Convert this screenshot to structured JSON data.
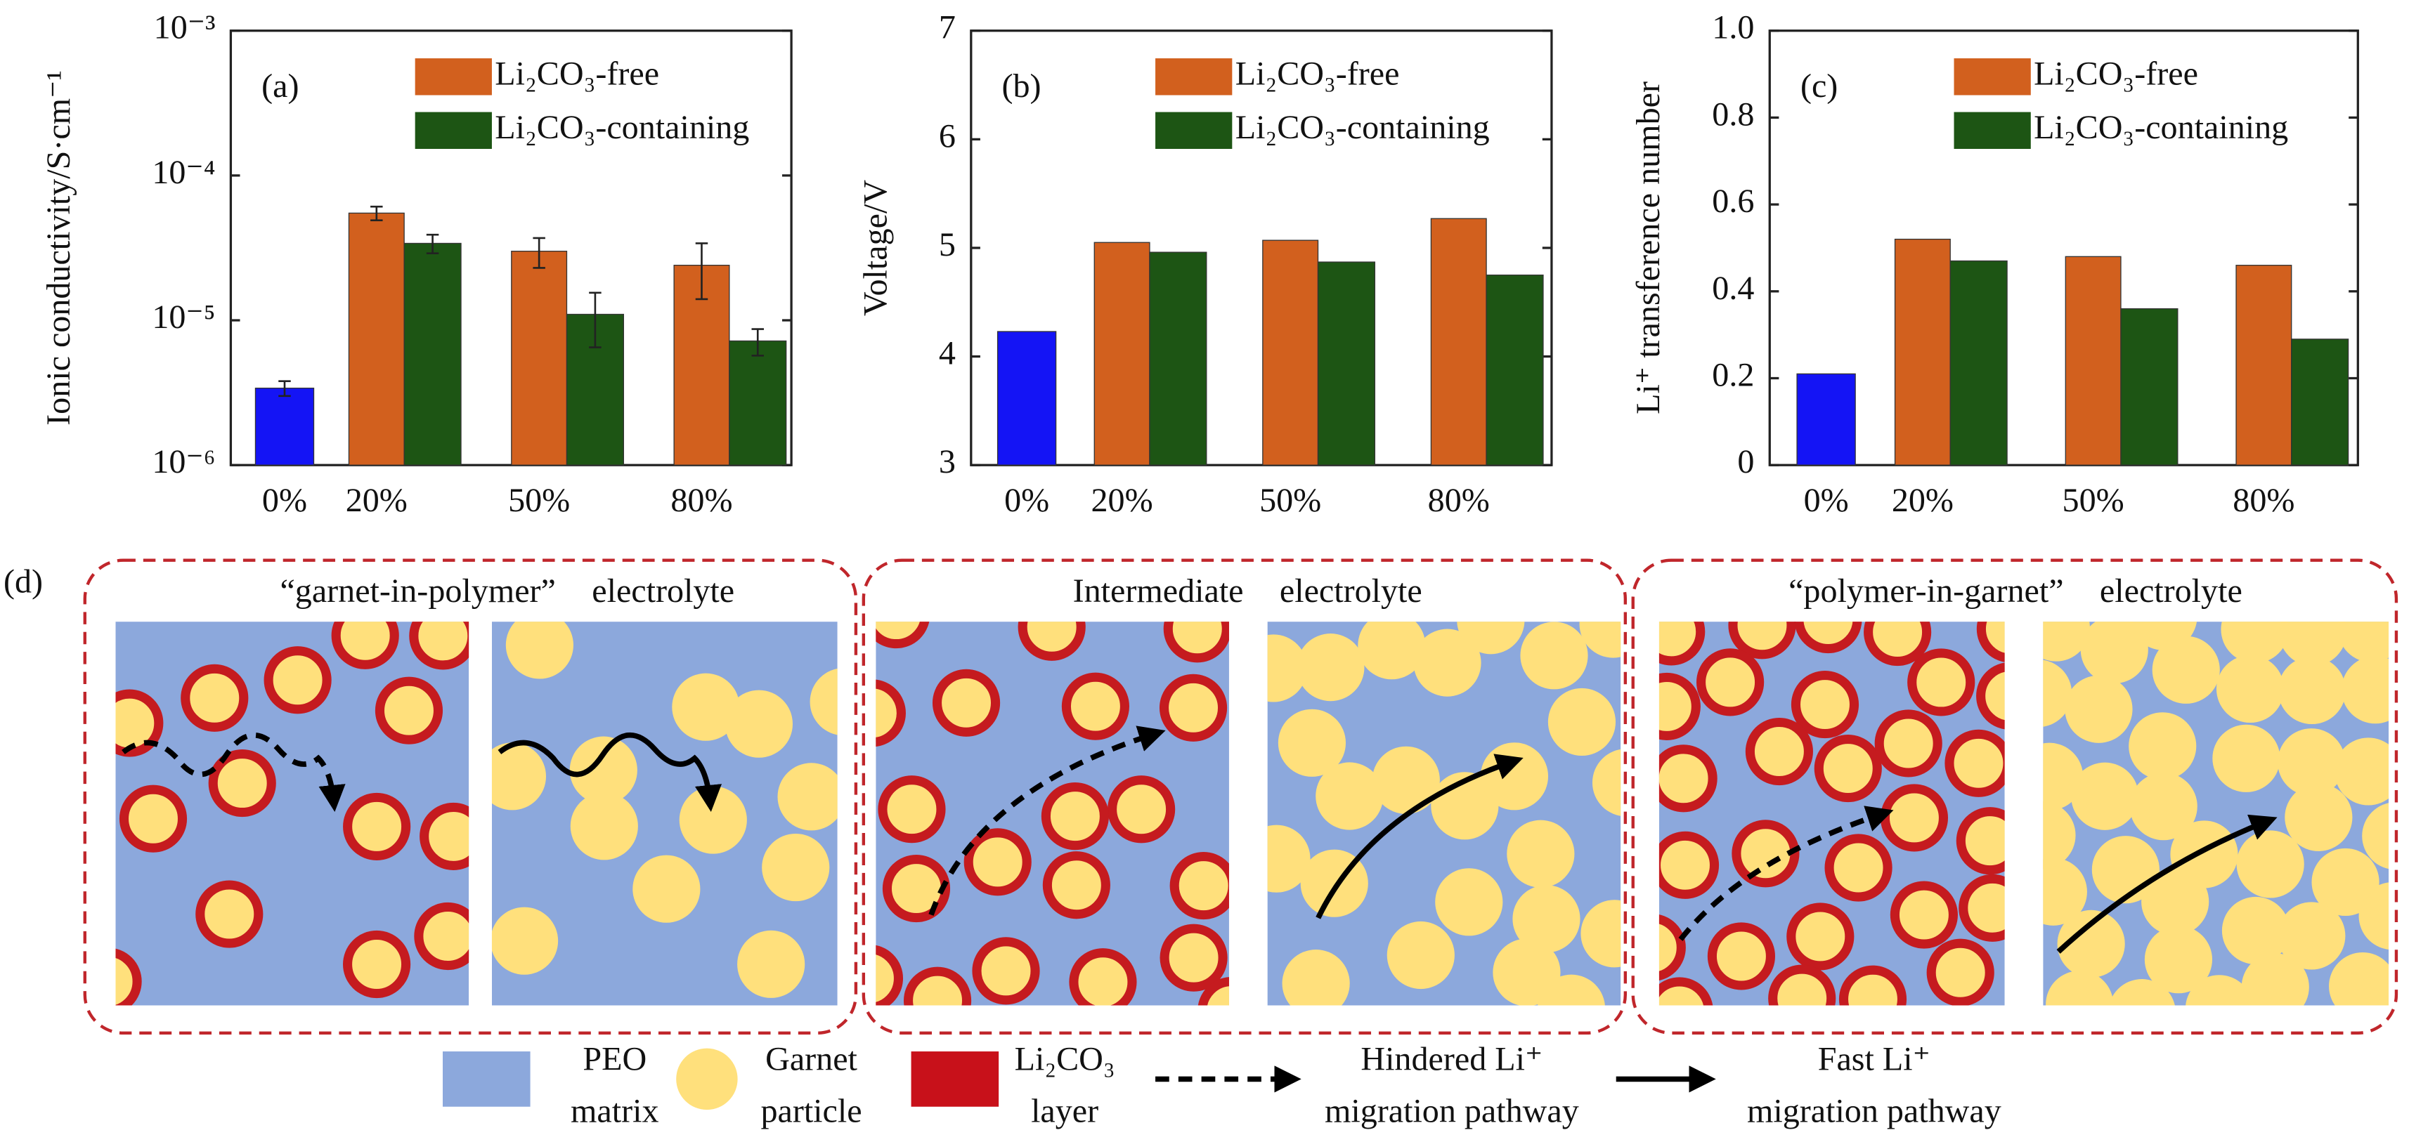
{
  "chart_data": [
    {
      "type": "bar",
      "label": "(a)",
      "ylabel": "Ionic conductivity/S·cm⁻¹",
      "log_scale": true,
      "categories": [
        "0%",
        "20%",
        "50%",
        "80%"
      ],
      "ylim": [
        1e-06,
        0.001
      ],
      "yticks": [
        {
          "value": 1e-06,
          "label": "10⁻⁶"
        },
        {
          "value": 1e-05,
          "label": "10⁻⁵"
        },
        {
          "value": 0.0001,
          "label": "10⁻⁴"
        },
        {
          "value": 0.001,
          "label": "10⁻³"
        }
      ],
      "series": [
        {
          "color": "#1414f5",
          "values": [
            3.4e-06,
            null,
            null,
            null
          ],
          "errors": [
            4e-07,
            null,
            null,
            null
          ]
        },
        {
          "name": "Li₂CO₃-free",
          "color": "#d2601e",
          "values": [
            null,
            5.5e-05,
            3e-05,
            2.4e-05
          ],
          "errors": [
            null,
            6e-06,
            7e-06,
            1e-05
          ]
        },
        {
          "name": "Li₂CO₃-containing",
          "color": "#1d5514",
          "values": [
            null,
            3.4e-05,
            1.1e-05,
            7.2e-06
          ],
          "errors": [
            null,
            5e-06,
            4.5e-06,
            1.5e-06
          ]
        }
      ]
    },
    {
      "type": "bar",
      "label": "(b)",
      "ylabel": "Voltage/V",
      "categories": [
        "0%",
        "20%",
        "50%",
        "80%"
      ],
      "ylim": [
        3,
        7
      ],
      "yticks": [
        3,
        4,
        5,
        6,
        7
      ],
      "series": [
        {
          "color": "#1414f5",
          "values": [
            4.23,
            null,
            null,
            null
          ]
        },
        {
          "name": "Li₂CO₃-free",
          "color": "#d2601e",
          "values": [
            null,
            5.05,
            5.07,
            5.27
          ]
        },
        {
          "name": "Li₂CO₃-containing",
          "color": "#1d5514",
          "values": [
            null,
            4.96,
            4.87,
            4.75
          ]
        }
      ]
    },
    {
      "type": "bar",
      "label": "(c)",
      "ylabel": "Li⁺ transference number",
      "categories": [
        "0%",
        "20%",
        "50%",
        "80%"
      ],
      "ylim": [
        0,
        1
      ],
      "yticks": [
        0,
        0.2,
        0.4,
        0.6,
        0.8,
        {
          "value": 1,
          "label": "1.0"
        }
      ],
      "series": [
        {
          "color": "#1414f5",
          "values": [
            0.21,
            null,
            null,
            null
          ]
        },
        {
          "name": "Li₂CO₃-free",
          "color": "#d2601e",
          "values": [
            null,
            0.52,
            0.48,
            0.46
          ]
        },
        {
          "name": "Li₂CO₃-containing",
          "color": "#1d5514",
          "values": [
            null,
            0.47,
            0.36,
            0.29
          ]
        }
      ]
    }
  ],
  "diagram": {
    "label": "(d)",
    "groups": [
      {
        "title": "“garnet-in-polymer” electrolyte"
      },
      {
        "title": "Intermediate electrolyte"
      },
      {
        "title": "“polymer-in-garnet” electrolyte"
      }
    ],
    "legend": [
      {
        "lines": [
          "PEO",
          "matrix"
        ]
      },
      {
        "lines": [
          "Garnet",
          "particle"
        ]
      },
      {
        "lines": [
          "Li₂CO₃",
          "layer"
        ]
      },
      {
        "lines": [
          "Hindered Li⁺",
          "migration pathway"
        ]
      },
      {
        "lines": [
          "Fast Li⁺",
          "migration pathway"
        ]
      }
    ]
  }
}
